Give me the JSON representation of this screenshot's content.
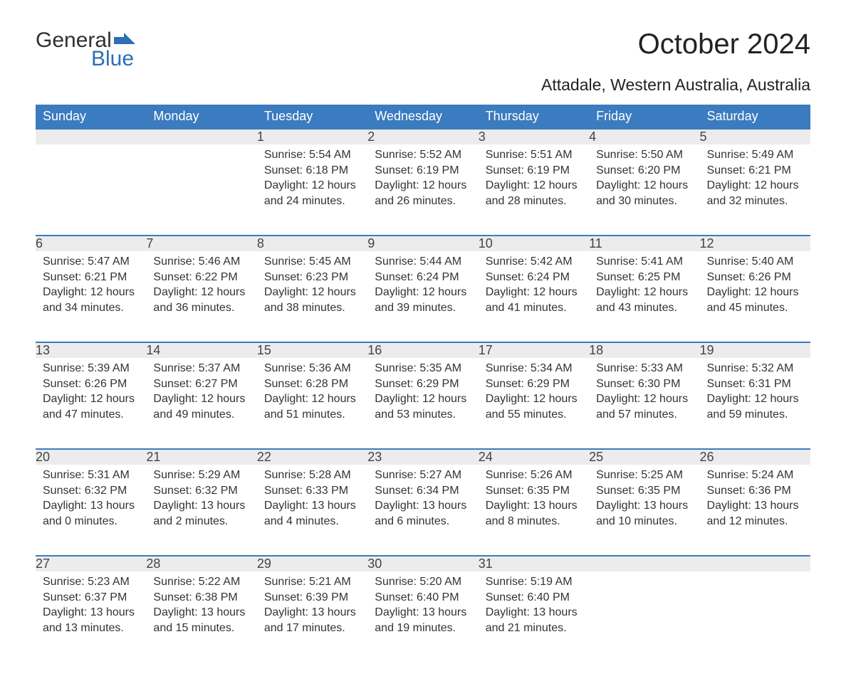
{
  "logo": {
    "general": "General",
    "blue": "Blue",
    "flag_color": "#2d6eb5"
  },
  "title": "October 2024",
  "subtitle": "Attadale, Western Australia, Australia",
  "header_bg": "#3b7bbf",
  "header_fg": "#ffffff",
  "daynum_bg": "#ececec",
  "border_color": "#3b7bbf",
  "text_color": "#333333",
  "days_of_week": [
    "Sunday",
    "Monday",
    "Tuesday",
    "Wednesday",
    "Thursday",
    "Friday",
    "Saturday"
  ],
  "weeks": [
    [
      null,
      null,
      {
        "n": "1",
        "sr": "Sunrise: 5:54 AM",
        "ss": "Sunset: 6:18 PM",
        "d1": "Daylight: 12 hours",
        "d2": "and 24 minutes."
      },
      {
        "n": "2",
        "sr": "Sunrise: 5:52 AM",
        "ss": "Sunset: 6:19 PM",
        "d1": "Daylight: 12 hours",
        "d2": "and 26 minutes."
      },
      {
        "n": "3",
        "sr": "Sunrise: 5:51 AM",
        "ss": "Sunset: 6:19 PM",
        "d1": "Daylight: 12 hours",
        "d2": "and 28 minutes."
      },
      {
        "n": "4",
        "sr": "Sunrise: 5:50 AM",
        "ss": "Sunset: 6:20 PM",
        "d1": "Daylight: 12 hours",
        "d2": "and 30 minutes."
      },
      {
        "n": "5",
        "sr": "Sunrise: 5:49 AM",
        "ss": "Sunset: 6:21 PM",
        "d1": "Daylight: 12 hours",
        "d2": "and 32 minutes."
      }
    ],
    [
      {
        "n": "6",
        "sr": "Sunrise: 5:47 AM",
        "ss": "Sunset: 6:21 PM",
        "d1": "Daylight: 12 hours",
        "d2": "and 34 minutes."
      },
      {
        "n": "7",
        "sr": "Sunrise: 5:46 AM",
        "ss": "Sunset: 6:22 PM",
        "d1": "Daylight: 12 hours",
        "d2": "and 36 minutes."
      },
      {
        "n": "8",
        "sr": "Sunrise: 5:45 AM",
        "ss": "Sunset: 6:23 PM",
        "d1": "Daylight: 12 hours",
        "d2": "and 38 minutes."
      },
      {
        "n": "9",
        "sr": "Sunrise: 5:44 AM",
        "ss": "Sunset: 6:24 PM",
        "d1": "Daylight: 12 hours",
        "d2": "and 39 minutes."
      },
      {
        "n": "10",
        "sr": "Sunrise: 5:42 AM",
        "ss": "Sunset: 6:24 PM",
        "d1": "Daylight: 12 hours",
        "d2": "and 41 minutes."
      },
      {
        "n": "11",
        "sr": "Sunrise: 5:41 AM",
        "ss": "Sunset: 6:25 PM",
        "d1": "Daylight: 12 hours",
        "d2": "and 43 minutes."
      },
      {
        "n": "12",
        "sr": "Sunrise: 5:40 AM",
        "ss": "Sunset: 6:26 PM",
        "d1": "Daylight: 12 hours",
        "d2": "and 45 minutes."
      }
    ],
    [
      {
        "n": "13",
        "sr": "Sunrise: 5:39 AM",
        "ss": "Sunset: 6:26 PM",
        "d1": "Daylight: 12 hours",
        "d2": "and 47 minutes."
      },
      {
        "n": "14",
        "sr": "Sunrise: 5:37 AM",
        "ss": "Sunset: 6:27 PM",
        "d1": "Daylight: 12 hours",
        "d2": "and 49 minutes."
      },
      {
        "n": "15",
        "sr": "Sunrise: 5:36 AM",
        "ss": "Sunset: 6:28 PM",
        "d1": "Daylight: 12 hours",
        "d2": "and 51 minutes."
      },
      {
        "n": "16",
        "sr": "Sunrise: 5:35 AM",
        "ss": "Sunset: 6:29 PM",
        "d1": "Daylight: 12 hours",
        "d2": "and 53 minutes."
      },
      {
        "n": "17",
        "sr": "Sunrise: 5:34 AM",
        "ss": "Sunset: 6:29 PM",
        "d1": "Daylight: 12 hours",
        "d2": "and 55 minutes."
      },
      {
        "n": "18",
        "sr": "Sunrise: 5:33 AM",
        "ss": "Sunset: 6:30 PM",
        "d1": "Daylight: 12 hours",
        "d2": "and 57 minutes."
      },
      {
        "n": "19",
        "sr": "Sunrise: 5:32 AM",
        "ss": "Sunset: 6:31 PM",
        "d1": "Daylight: 12 hours",
        "d2": "and 59 minutes."
      }
    ],
    [
      {
        "n": "20",
        "sr": "Sunrise: 5:31 AM",
        "ss": "Sunset: 6:32 PM",
        "d1": "Daylight: 13 hours",
        "d2": "and 0 minutes."
      },
      {
        "n": "21",
        "sr": "Sunrise: 5:29 AM",
        "ss": "Sunset: 6:32 PM",
        "d1": "Daylight: 13 hours",
        "d2": "and 2 minutes."
      },
      {
        "n": "22",
        "sr": "Sunrise: 5:28 AM",
        "ss": "Sunset: 6:33 PM",
        "d1": "Daylight: 13 hours",
        "d2": "and 4 minutes."
      },
      {
        "n": "23",
        "sr": "Sunrise: 5:27 AM",
        "ss": "Sunset: 6:34 PM",
        "d1": "Daylight: 13 hours",
        "d2": "and 6 minutes."
      },
      {
        "n": "24",
        "sr": "Sunrise: 5:26 AM",
        "ss": "Sunset: 6:35 PM",
        "d1": "Daylight: 13 hours",
        "d2": "and 8 minutes."
      },
      {
        "n": "25",
        "sr": "Sunrise: 5:25 AM",
        "ss": "Sunset: 6:35 PM",
        "d1": "Daylight: 13 hours",
        "d2": "and 10 minutes."
      },
      {
        "n": "26",
        "sr": "Sunrise: 5:24 AM",
        "ss": "Sunset: 6:36 PM",
        "d1": "Daylight: 13 hours",
        "d2": "and 12 minutes."
      }
    ],
    [
      {
        "n": "27",
        "sr": "Sunrise: 5:23 AM",
        "ss": "Sunset: 6:37 PM",
        "d1": "Daylight: 13 hours",
        "d2": "and 13 minutes."
      },
      {
        "n": "28",
        "sr": "Sunrise: 5:22 AM",
        "ss": "Sunset: 6:38 PM",
        "d1": "Daylight: 13 hours",
        "d2": "and 15 minutes."
      },
      {
        "n": "29",
        "sr": "Sunrise: 5:21 AM",
        "ss": "Sunset: 6:39 PM",
        "d1": "Daylight: 13 hours",
        "d2": "and 17 minutes."
      },
      {
        "n": "30",
        "sr": "Sunrise: 5:20 AM",
        "ss": "Sunset: 6:40 PM",
        "d1": "Daylight: 13 hours",
        "d2": "and 19 minutes."
      },
      {
        "n": "31",
        "sr": "Sunrise: 5:19 AM",
        "ss": "Sunset: 6:40 PM",
        "d1": "Daylight: 13 hours",
        "d2": "and 21 minutes."
      },
      null,
      null
    ]
  ]
}
